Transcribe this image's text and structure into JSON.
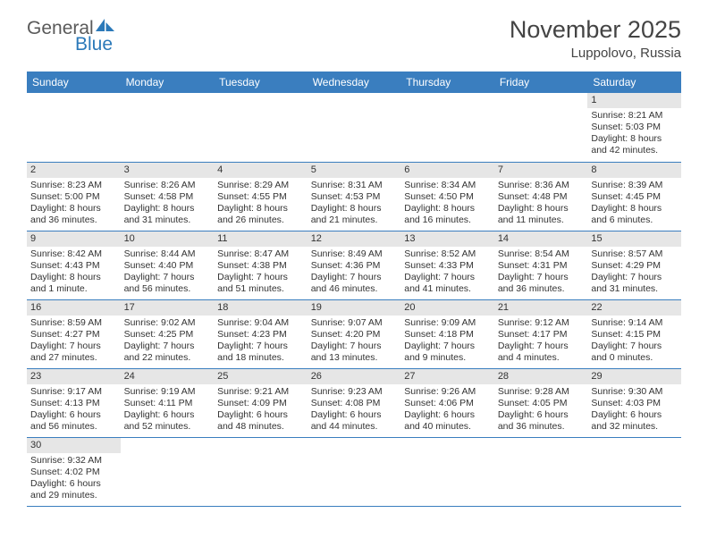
{
  "logo": {
    "text_general": "General",
    "text_blue": "Blue"
  },
  "title": "November 2025",
  "location": "Luppolovo, Russia",
  "colors": {
    "header_bg": "#3a7ebf",
    "header_text": "#ffffff",
    "daynum_bg": "#e6e6e6",
    "text": "#333333",
    "border": "#3a7ebf",
    "logo_gray": "#5a5a5a",
    "logo_blue": "#2b79b9"
  },
  "day_headers": [
    "Sunday",
    "Monday",
    "Tuesday",
    "Wednesday",
    "Thursday",
    "Friday",
    "Saturday"
  ],
  "weeks": [
    [
      {
        "blank": true
      },
      {
        "blank": true
      },
      {
        "blank": true
      },
      {
        "blank": true
      },
      {
        "blank": true
      },
      {
        "blank": true
      },
      {
        "num": "1",
        "sunrise": "Sunrise: 8:21 AM",
        "sunset": "Sunset: 5:03 PM",
        "day1": "Daylight: 8 hours",
        "day2": "and 42 minutes."
      }
    ],
    [
      {
        "num": "2",
        "sunrise": "Sunrise: 8:23 AM",
        "sunset": "Sunset: 5:00 PM",
        "day1": "Daylight: 8 hours",
        "day2": "and 36 minutes."
      },
      {
        "num": "3",
        "sunrise": "Sunrise: 8:26 AM",
        "sunset": "Sunset: 4:58 PM",
        "day1": "Daylight: 8 hours",
        "day2": "and 31 minutes."
      },
      {
        "num": "4",
        "sunrise": "Sunrise: 8:29 AM",
        "sunset": "Sunset: 4:55 PM",
        "day1": "Daylight: 8 hours",
        "day2": "and 26 minutes."
      },
      {
        "num": "5",
        "sunrise": "Sunrise: 8:31 AM",
        "sunset": "Sunset: 4:53 PM",
        "day1": "Daylight: 8 hours",
        "day2": "and 21 minutes."
      },
      {
        "num": "6",
        "sunrise": "Sunrise: 8:34 AM",
        "sunset": "Sunset: 4:50 PM",
        "day1": "Daylight: 8 hours",
        "day2": "and 16 minutes."
      },
      {
        "num": "7",
        "sunrise": "Sunrise: 8:36 AM",
        "sunset": "Sunset: 4:48 PM",
        "day1": "Daylight: 8 hours",
        "day2": "and 11 minutes."
      },
      {
        "num": "8",
        "sunrise": "Sunrise: 8:39 AM",
        "sunset": "Sunset: 4:45 PM",
        "day1": "Daylight: 8 hours",
        "day2": "and 6 minutes."
      }
    ],
    [
      {
        "num": "9",
        "sunrise": "Sunrise: 8:42 AM",
        "sunset": "Sunset: 4:43 PM",
        "day1": "Daylight: 8 hours",
        "day2": "and 1 minute."
      },
      {
        "num": "10",
        "sunrise": "Sunrise: 8:44 AM",
        "sunset": "Sunset: 4:40 PM",
        "day1": "Daylight: 7 hours",
        "day2": "and 56 minutes."
      },
      {
        "num": "11",
        "sunrise": "Sunrise: 8:47 AM",
        "sunset": "Sunset: 4:38 PM",
        "day1": "Daylight: 7 hours",
        "day2": "and 51 minutes."
      },
      {
        "num": "12",
        "sunrise": "Sunrise: 8:49 AM",
        "sunset": "Sunset: 4:36 PM",
        "day1": "Daylight: 7 hours",
        "day2": "and 46 minutes."
      },
      {
        "num": "13",
        "sunrise": "Sunrise: 8:52 AM",
        "sunset": "Sunset: 4:33 PM",
        "day1": "Daylight: 7 hours",
        "day2": "and 41 minutes."
      },
      {
        "num": "14",
        "sunrise": "Sunrise: 8:54 AM",
        "sunset": "Sunset: 4:31 PM",
        "day1": "Daylight: 7 hours",
        "day2": "and 36 minutes."
      },
      {
        "num": "15",
        "sunrise": "Sunrise: 8:57 AM",
        "sunset": "Sunset: 4:29 PM",
        "day1": "Daylight: 7 hours",
        "day2": "and 31 minutes."
      }
    ],
    [
      {
        "num": "16",
        "sunrise": "Sunrise: 8:59 AM",
        "sunset": "Sunset: 4:27 PM",
        "day1": "Daylight: 7 hours",
        "day2": "and 27 minutes."
      },
      {
        "num": "17",
        "sunrise": "Sunrise: 9:02 AM",
        "sunset": "Sunset: 4:25 PM",
        "day1": "Daylight: 7 hours",
        "day2": "and 22 minutes."
      },
      {
        "num": "18",
        "sunrise": "Sunrise: 9:04 AM",
        "sunset": "Sunset: 4:23 PM",
        "day1": "Daylight: 7 hours",
        "day2": "and 18 minutes."
      },
      {
        "num": "19",
        "sunrise": "Sunrise: 9:07 AM",
        "sunset": "Sunset: 4:20 PM",
        "day1": "Daylight: 7 hours",
        "day2": "and 13 minutes."
      },
      {
        "num": "20",
        "sunrise": "Sunrise: 9:09 AM",
        "sunset": "Sunset: 4:18 PM",
        "day1": "Daylight: 7 hours",
        "day2": "and 9 minutes."
      },
      {
        "num": "21",
        "sunrise": "Sunrise: 9:12 AM",
        "sunset": "Sunset: 4:17 PM",
        "day1": "Daylight: 7 hours",
        "day2": "and 4 minutes."
      },
      {
        "num": "22",
        "sunrise": "Sunrise: 9:14 AM",
        "sunset": "Sunset: 4:15 PM",
        "day1": "Daylight: 7 hours",
        "day2": "and 0 minutes."
      }
    ],
    [
      {
        "num": "23",
        "sunrise": "Sunrise: 9:17 AM",
        "sunset": "Sunset: 4:13 PM",
        "day1": "Daylight: 6 hours",
        "day2": "and 56 minutes."
      },
      {
        "num": "24",
        "sunrise": "Sunrise: 9:19 AM",
        "sunset": "Sunset: 4:11 PM",
        "day1": "Daylight: 6 hours",
        "day2": "and 52 minutes."
      },
      {
        "num": "25",
        "sunrise": "Sunrise: 9:21 AM",
        "sunset": "Sunset: 4:09 PM",
        "day1": "Daylight: 6 hours",
        "day2": "and 48 minutes."
      },
      {
        "num": "26",
        "sunrise": "Sunrise: 9:23 AM",
        "sunset": "Sunset: 4:08 PM",
        "day1": "Daylight: 6 hours",
        "day2": "and 44 minutes."
      },
      {
        "num": "27",
        "sunrise": "Sunrise: 9:26 AM",
        "sunset": "Sunset: 4:06 PM",
        "day1": "Daylight: 6 hours",
        "day2": "and 40 minutes."
      },
      {
        "num": "28",
        "sunrise": "Sunrise: 9:28 AM",
        "sunset": "Sunset: 4:05 PM",
        "day1": "Daylight: 6 hours",
        "day2": "and 36 minutes."
      },
      {
        "num": "29",
        "sunrise": "Sunrise: 9:30 AM",
        "sunset": "Sunset: 4:03 PM",
        "day1": "Daylight: 6 hours",
        "day2": "and 32 minutes."
      }
    ],
    [
      {
        "num": "30",
        "sunrise": "Sunrise: 9:32 AM",
        "sunset": "Sunset: 4:02 PM",
        "day1": "Daylight: 6 hours",
        "day2": "and 29 minutes."
      },
      {
        "blank": true,
        "trailing": true
      },
      {
        "blank": true,
        "trailing": true
      },
      {
        "blank": true,
        "trailing": true
      },
      {
        "blank": true,
        "trailing": true
      },
      {
        "blank": true,
        "trailing": true
      },
      {
        "blank": true,
        "trailing": true
      }
    ]
  ]
}
